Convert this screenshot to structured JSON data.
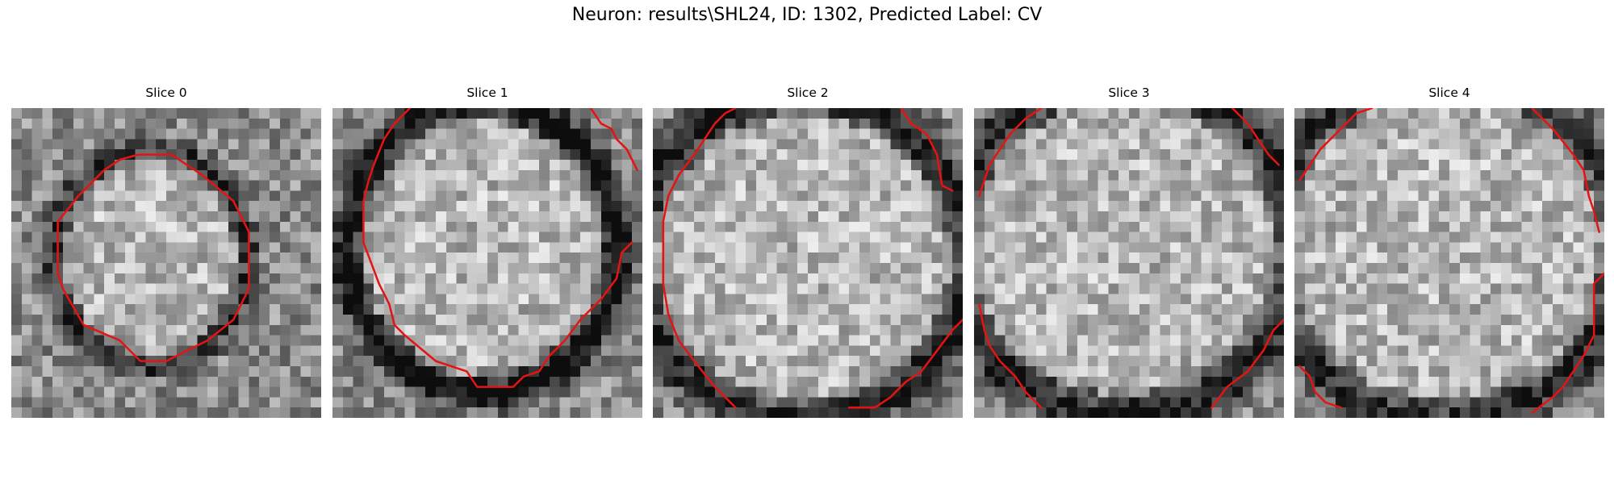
{
  "figure": {
    "title": "Neuron: results\\SHL24, ID: 1302, Predicted Label: CV",
    "contour_color": "#e41414"
  },
  "slices": [
    {
      "title": "Slice 0",
      "contour_closed": true,
      "contours": [
        [
          [
            12.3,
            4.5
          ],
          [
            15.5,
            4.5
          ],
          [
            18.5,
            6.5
          ],
          [
            21.5,
            9
          ],
          [
            23,
            12
          ],
          [
            23,
            17.5
          ],
          [
            21.5,
            20.5
          ],
          [
            19,
            22.5
          ],
          [
            18,
            23
          ],
          [
            15,
            24.5
          ],
          [
            12.5,
            24.5
          ],
          [
            10.5,
            22.5
          ],
          [
            7,
            21
          ],
          [
            5,
            17.5
          ],
          [
            4.5,
            16
          ],
          [
            4.5,
            11
          ],
          [
            6.5,
            8.5
          ],
          [
            9,
            6
          ],
          [
            10.5,
            5
          ]
        ]
      ]
    },
    {
      "title": "Slice 1",
      "contours": [
        [
          [
            7.5,
            0
          ],
          [
            6,
            1.5
          ],
          [
            5,
            3
          ],
          [
            4,
            5.5
          ],
          [
            3.5,
            7
          ],
          [
            3,
            9
          ],
          [
            3,
            13
          ],
          [
            4.5,
            17
          ],
          [
            5.5,
            19
          ],
          [
            6,
            21
          ],
          [
            7,
            22
          ],
          [
            10,
            24.5
          ],
          [
            13,
            25.5
          ],
          [
            14,
            27
          ],
          [
            17.5,
            27
          ],
          [
            18.5,
            26
          ],
          [
            20,
            25.5
          ],
          [
            21,
            24
          ],
          [
            22.5,
            22.5
          ],
          [
            24,
            20.5
          ],
          [
            26,
            18.5
          ],
          [
            27.5,
            16.5
          ],
          [
            28,
            14
          ],
          [
            29,
            13
          ]
        ],
        [
          [
            25,
            0
          ],
          [
            26,
            1.5
          ],
          [
            27,
            2
          ],
          [
            27.5,
            3
          ],
          [
            28.5,
            4
          ],
          [
            29,
            5
          ],
          [
            29.5,
            6
          ]
        ]
      ]
    },
    {
      "title": "Slice 2",
      "contours": [
        [
          [
            8,
            0
          ],
          [
            7,
            0.5
          ],
          [
            6,
            1.5
          ],
          [
            5,
            3
          ],
          [
            4,
            4.5
          ],
          [
            2.5,
            6.5
          ],
          [
            1.5,
            8.5
          ],
          [
            1,
            11
          ],
          [
            1,
            17
          ],
          [
            1.5,
            20
          ],
          [
            2.5,
            22.5
          ],
          [
            4,
            24.5
          ],
          [
            6,
            27
          ],
          [
            8,
            29
          ]
        ],
        [
          [
            24,
            0
          ],
          [
            25,
            1.5
          ],
          [
            26.5,
            2.5
          ],
          [
            27.5,
            4.5
          ],
          [
            28,
            7.5
          ],
          [
            29,
            8
          ]
        ],
        [
          [
            19,
            29
          ],
          [
            21.5,
            29
          ],
          [
            23,
            28
          ],
          [
            24.5,
            26.5
          ],
          [
            26,
            25.5
          ],
          [
            27.5,
            23.5
          ],
          [
            29,
            21.5
          ],
          [
            30,
            20.5
          ]
        ]
      ]
    },
    {
      "title": "Slice 3",
      "contours": [
        [
          [
            6.5,
            0
          ],
          [
            5,
            1
          ],
          [
            3.5,
            2.5
          ],
          [
            2.5,
            4
          ],
          [
            1.5,
            5.5
          ],
          [
            1,
            7
          ],
          [
            0.5,
            8.5
          ]
        ],
        [
          [
            25,
            0
          ],
          [
            26.5,
            1.5
          ],
          [
            27.5,
            3
          ],
          [
            28.5,
            4.5
          ],
          [
            29.5,
            5.5
          ]
        ],
        [
          [
            0.5,
            19
          ],
          [
            1,
            21.5
          ],
          [
            1.5,
            23
          ],
          [
            2.5,
            24.5
          ],
          [
            4,
            26
          ],
          [
            5,
            27.5
          ],
          [
            6.5,
            29
          ]
        ],
        [
          [
            23,
            29
          ],
          [
            24.5,
            27
          ],
          [
            26.5,
            25.5
          ],
          [
            28,
            23.5
          ],
          [
            29,
            21.5
          ],
          [
            30,
            20.5
          ]
        ]
      ]
    },
    {
      "title": "Slice 4",
      "contours": [
        [
          [
            7.5,
            0
          ],
          [
            6,
            0.5
          ],
          [
            5,
            1.5
          ],
          [
            4,
            2.5
          ],
          [
            2.5,
            4
          ],
          [
            1.5,
            5.5
          ],
          [
            0.5,
            7
          ]
        ],
        [
          [
            23,
            0
          ],
          [
            25,
            2
          ],
          [
            27,
            4.5
          ],
          [
            28,
            6
          ],
          [
            28.5,
            8.5
          ],
          [
            29,
            10
          ],
          [
            29.5,
            12
          ]
        ],
        [
          [
            30,
            16
          ],
          [
            29,
            17
          ],
          [
            29,
            22
          ],
          [
            28,
            24
          ],
          [
            27,
            25.5
          ],
          [
            26,
            27
          ],
          [
            25,
            28
          ],
          [
            23,
            29.5
          ]
        ],
        [
          [
            0.5,
            25
          ],
          [
            1.5,
            26
          ],
          [
            2,
            27.5
          ],
          [
            3,
            28.5
          ],
          [
            4.5,
            29
          ]
        ]
      ]
    }
  ]
}
